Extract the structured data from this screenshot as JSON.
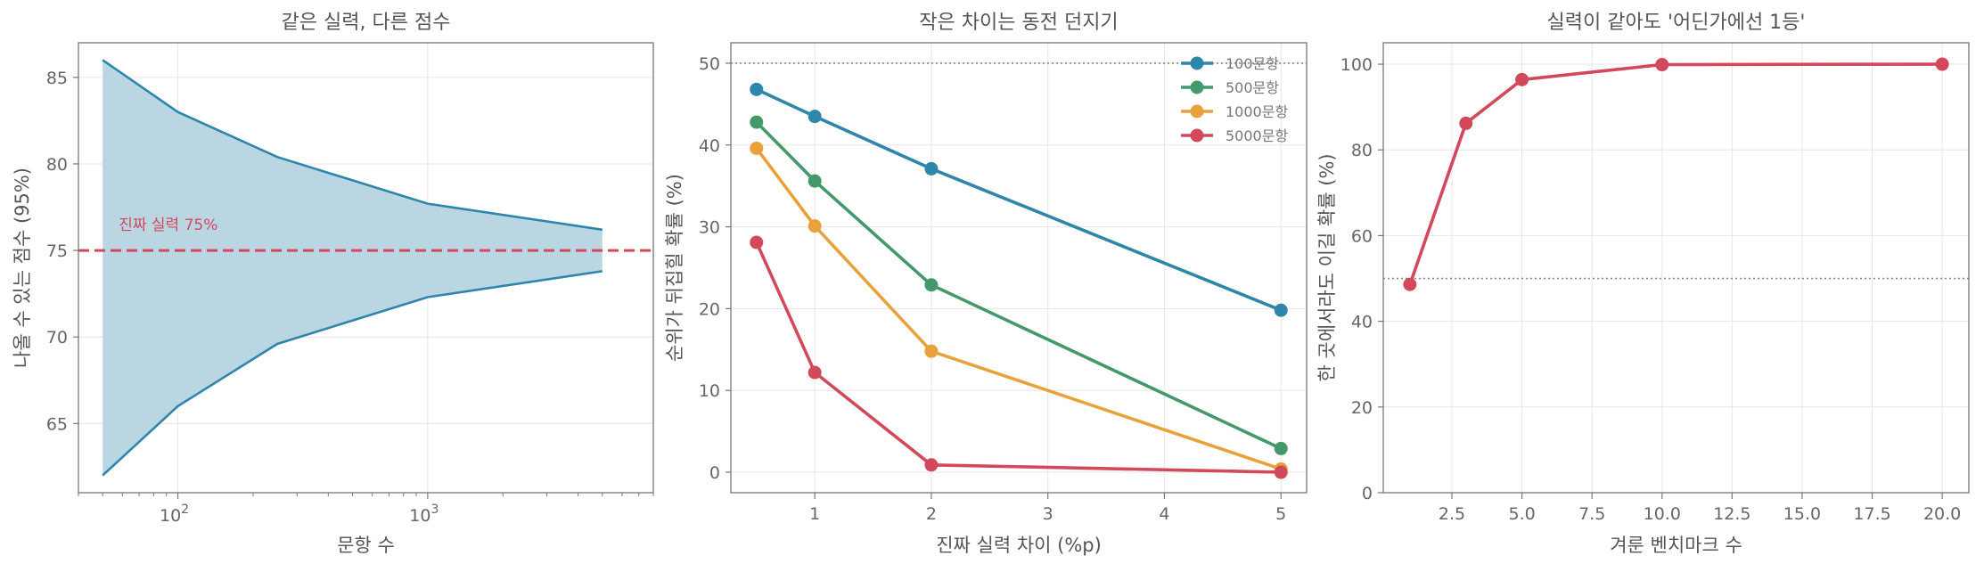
{
  "chart_data": [
    {
      "type": "area",
      "title": "같은 실력, 다른 점수",
      "xlabel": "문항 수",
      "ylabel": "나올 수 있는 점수 (95%)",
      "xscale": "log",
      "xlim": [
        40,
        8000
      ],
      "ylim": [
        61,
        87
      ],
      "xticks": [
        100,
        1000
      ],
      "xtick_labels": [
        "10",
        "10"
      ],
      "xtick_exponents": [
        "2",
        "3"
      ],
      "yticks": [
        65,
        70,
        75,
        80,
        85
      ],
      "grid": true,
      "x": [
        50,
        100,
        250,
        1000,
        5000
      ],
      "upper": [
        86.0,
        83.0,
        80.4,
        77.7,
        76.2
      ],
      "lower": [
        62.0,
        66.0,
        69.6,
        72.3,
        73.8
      ],
      "reference_line": {
        "y": 75,
        "label": "진짜 실력 75%"
      },
      "colors": {
        "band": "#bad6e2",
        "edge": "#2e86ab",
        "reference": "#d1495b"
      }
    },
    {
      "type": "line",
      "title": "작은 차이는 동전 던지기",
      "xlabel": "진짜 실력 차이 (%p)",
      "ylabel": "순위가 뒤집힐 확률 (%)",
      "xlim": [
        0.28,
        5.22
      ],
      "ylim": [
        -2.5,
        52.5
      ],
      "xticks": [
        1,
        2,
        3,
        4,
        5
      ],
      "yticks": [
        0,
        10,
        20,
        30,
        40,
        50
      ],
      "grid": true,
      "legend": "top-right",
      "reference_line": {
        "y": 50
      },
      "x": [
        0.5,
        1,
        2,
        5
      ],
      "series": [
        {
          "name": "100문항",
          "values": [
            46.8,
            43.5,
            37.1,
            19.8
          ],
          "color": "#2e86ab"
        },
        {
          "name": "500문항",
          "values": [
            42.8,
            35.6,
            22.9,
            2.9
          ],
          "color": "#44996b"
        },
        {
          "name": "1000문항",
          "values": [
            39.6,
            30.1,
            14.8,
            0.4
          ],
          "color": "#e9a23b"
        },
        {
          "name": "5000문항",
          "values": [
            28.1,
            12.2,
            0.9,
            0.0
          ],
          "color": "#d1495b"
        }
      ]
    },
    {
      "type": "line",
      "title": "실력이 같아도 '어딘가에선 1등'",
      "xlabel": "겨룬 벤치마크 수",
      "ylabel": "한 곳에서라도 이길 확률 (%)",
      "xlim": [
        0.05,
        20.95
      ],
      "ylim": [
        0,
        105
      ],
      "xticks": [
        2.5,
        5.0,
        7.5,
        10.0,
        12.5,
        15.0,
        17.5,
        20.0
      ],
      "xtick_labels": [
        "2.5",
        "5.0",
        "7.5",
        "10.0",
        "12.5",
        "15.0",
        "17.5",
        "20.0"
      ],
      "yticks": [
        0,
        20,
        40,
        60,
        80,
        100
      ],
      "grid": true,
      "reference_line": {
        "y": 50
      },
      "x": [
        1,
        3,
        5,
        10,
        20
      ],
      "series": [
        {
          "values": [
            48.6,
            86.2,
            96.4,
            99.9,
            100.0
          ],
          "color": "#d1495b"
        }
      ]
    }
  ]
}
